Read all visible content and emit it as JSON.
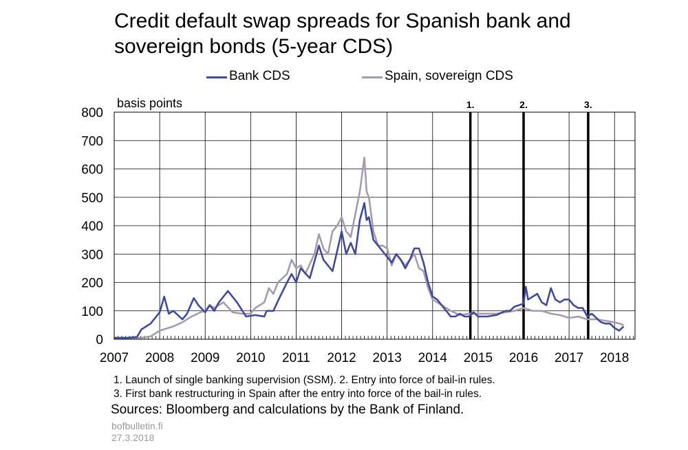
{
  "page": {
    "title_line1": "Credit default swap spreads for Spanish bank and",
    "title_line2": "sovereign bonds (5-year CDS)",
    "note_line1": "1. Launch of single banking supervision (SSM). 2. Entry into force of bail-in rules.",
    "note_line2": "3. First bank restructuring in Spain after the entry into force of the bail-in rules.",
    "sources": "Sources: Bloomberg and calculations by the Bank of Finland.",
    "site": "bofbulletin.fi",
    "date": "27.3.2018"
  },
  "colors": {
    "bank": "#3f4a9b",
    "sovereign": "#a59bae",
    "grid": "#000000"
  },
  "chart_data": {
    "type": "line",
    "title": "Credit default swap spreads for Spanish bank and sovereign bonds (5-year CDS)",
    "ylabel": "basis points",
    "xlabel": "",
    "xlim": [
      2007.0,
      2018.45
    ],
    "ylim": [
      0,
      800
    ],
    "yticks": [
      0,
      100,
      200,
      300,
      400,
      500,
      600,
      700,
      800
    ],
    "xticks": [
      2007,
      2008,
      2009,
      2010,
      2011,
      2012,
      2013,
      2014,
      2015,
      2016,
      2017,
      2018
    ],
    "grid": true,
    "legend_position": "top",
    "events": [
      {
        "label": "1.",
        "x": 2014.83
      },
      {
        "label": "2.",
        "x": 2016.0
      },
      {
        "label": "3.",
        "x": 2017.42
      }
    ],
    "series": [
      {
        "name": "Bank CDS",
        "x": [
          2007.0,
          2007.3,
          2007.5,
          2007.6,
          2007.8,
          2008.0,
          2008.1,
          2008.2,
          2008.3,
          2008.5,
          2008.6,
          2008.75,
          2008.85,
          2009.0,
          2009.1,
          2009.2,
          2009.3,
          2009.5,
          2009.7,
          2009.9,
          2010.1,
          2010.3,
          2010.35,
          2010.5,
          2010.6,
          2010.8,
          2010.9,
          2011.0,
          2011.1,
          2011.3,
          2011.5,
          2011.6,
          2011.8,
          2011.9,
          2012.0,
          2012.1,
          2012.2,
          2012.3,
          2012.4,
          2012.5,
          2012.55,
          2012.6,
          2012.7,
          2012.8,
          2012.9,
          2013.0,
          2013.1,
          2013.2,
          2013.3,
          2013.4,
          2013.5,
          2013.6,
          2013.7,
          2013.8,
          2013.9,
          2014.0,
          2014.1,
          2014.2,
          2014.3,
          2014.4,
          2014.5,
          2014.6,
          2014.7,
          2014.8,
          2014.9,
          2015.0,
          2015.2,
          2015.4,
          2015.6,
          2015.7,
          2015.8,
          2015.9,
          2016.0,
          2016.05,
          2016.1,
          2016.2,
          2016.3,
          2016.4,
          2016.5,
          2016.6,
          2016.7,
          2016.8,
          2016.9,
          2017.0,
          2017.1,
          2017.2,
          2017.3,
          2017.4,
          2017.5,
          2017.6,
          2017.7,
          2017.8,
          2017.9,
          2018.0,
          2018.1,
          2018.2
        ],
        "values": [
          5,
          5,
          8,
          35,
          55,
          95,
          150,
          90,
          100,
          70,
          90,
          145,
          120,
          95,
          120,
          100,
          130,
          170,
          130,
          80,
          85,
          80,
          100,
          100,
          135,
          200,
          230,
          200,
          250,
          215,
          330,
          280,
          240,
          310,
          380,
          300,
          340,
          300,
          420,
          480,
          420,
          430,
          350,
          330,
          310,
          290,
          270,
          300,
          280,
          250,
          280,
          320,
          320,
          270,
          200,
          150,
          140,
          120,
          100,
          80,
          80,
          90,
          80,
          80,
          95,
          80,
          80,
          85,
          100,
          100,
          115,
          120,
          125,
          185,
          140,
          150,
          160,
          130,
          120,
          180,
          140,
          130,
          140,
          140,
          120,
          110,
          110,
          80,
          90,
          75,
          60,
          55,
          55,
          40,
          30,
          45
        ]
      },
      {
        "name": "Spain, sovereign CDS",
        "x": [
          2007.0,
          2007.3,
          2007.6,
          2007.8,
          2008.0,
          2008.3,
          2008.5,
          2008.7,
          2008.9,
          2009.0,
          2009.1,
          2009.2,
          2009.4,
          2009.6,
          2009.8,
          2010.0,
          2010.1,
          2010.3,
          2010.4,
          2010.5,
          2010.6,
          2010.8,
          2010.9,
          2011.0,
          2011.1,
          2011.2,
          2011.4,
          2011.5,
          2011.6,
          2011.7,
          2011.8,
          2011.9,
          2012.0,
          2012.1,
          2012.2,
          2012.3,
          2012.4,
          2012.5,
          2012.55,
          2012.6,
          2012.7,
          2012.8,
          2012.9,
          2013.0,
          2013.1,
          2013.2,
          2013.3,
          2013.4,
          2013.5,
          2013.6,
          2013.7,
          2013.8,
          2013.9,
          2014.0,
          2014.2,
          2014.4,
          2014.6,
          2014.8,
          2015.0,
          2015.2,
          2015.4,
          2015.6,
          2015.8,
          2016.0,
          2016.2,
          2016.4,
          2016.6,
          2016.8,
          2017.0,
          2017.2,
          2017.4,
          2017.6,
          2017.8,
          2018.0,
          2018.1,
          2018.2
        ],
        "values": [
          3,
          3,
          5,
          10,
          30,
          45,
          60,
          80,
          95,
          100,
          120,
          110,
          130,
          95,
          90,
          90,
          110,
          130,
          180,
          160,
          200,
          230,
          280,
          250,
          260,
          230,
          300,
          370,
          320,
          300,
          380,
          400,
          430,
          380,
          360,
          440,
          520,
          640,
          520,
          500,
          380,
          330,
          330,
          320,
          260,
          300,
          280,
          260,
          280,
          300,
          250,
          240,
          180,
          140,
          120,
          100,
          85,
          90,
          90,
          90,
          90,
          95,
          100,
          110,
          100,
          100,
          90,
          85,
          75,
          80,
          70,
          70,
          65,
          60,
          55,
          50
        ]
      }
    ]
  }
}
